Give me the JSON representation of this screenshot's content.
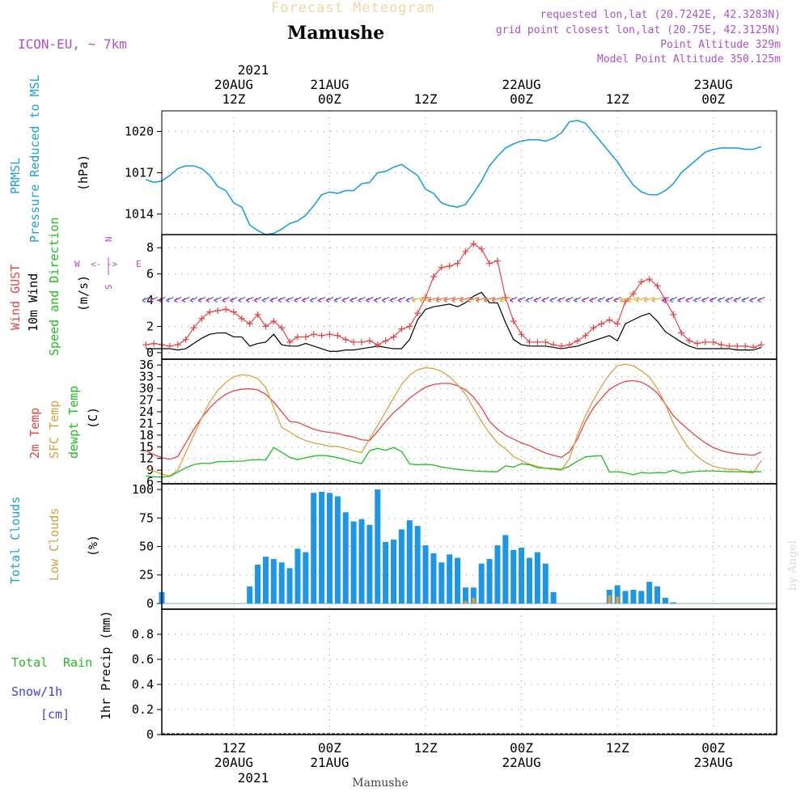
{
  "header": {
    "forecast_title": "Forecast Meteogram",
    "location": "Mamushe",
    "model": "ICON-EU, ~ 7km",
    "requested": "requested lon,lat (20.7242E, 42.3283N)",
    "grid_point": "grid point closest lon,lat (20.75E, 42.3125N)",
    "point_altitude": "Point Altitude 329m",
    "model_altitude": "Model Point Altitude 350.125m",
    "footer_location": "Mamushe",
    "watermark": "by Angel"
  },
  "time_axis": {
    "top_year": "2021",
    "bottom_year": "2021",
    "ticks": [
      {
        "hour": 12,
        "time": "12Z",
        "date": "20AUG"
      },
      {
        "hour": 24,
        "time": "00Z",
        "date": "21AUG"
      },
      {
        "hour": 36,
        "time": "12Z",
        "date": ""
      },
      {
        "hour": 48,
        "time": "00Z",
        "date": "22AUG"
      },
      {
        "hour": 60,
        "time": "12Z",
        "date": ""
      },
      {
        "hour": 72,
        "time": "00Z",
        "date": "23AUG"
      }
    ],
    "bottom_ticks": [
      {
        "hour": 12,
        "time": "12Z",
        "date": "20AUG"
      },
      {
        "hour": 24,
        "time": "00Z",
        "date": "21AUG"
      },
      {
        "hour": 36,
        "time": "12Z",
        "date": ""
      },
      {
        "hour": 48,
        "time": "00Z",
        "date": "22AUG"
      },
      {
        "hour": 60,
        "time": "12Z",
        "date": ""
      },
      {
        "hour": 72,
        "time": "00Z",
        "date": "23AUG"
      }
    ]
  },
  "colors": {
    "pressure": "#1ea0e6",
    "gust": "#e84646",
    "wind": "#000000",
    "wind_dir": "#20c020",
    "t2m": "#e84646",
    "sfc": "#e0a040",
    "dewpt": "#20c020",
    "total_clouds": "#1e96e6",
    "low_clouds": "#d8a040",
    "rain": "#20c020",
    "snow": "#4040e0",
    "label": "#b050d0"
  },
  "panels": {
    "pressure": {
      "label1": "PRMSL",
      "label2": "Pressure Reduced to MSL",
      "unit": "(hPa)"
    },
    "wind": {
      "label1": "Wind GUST",
      "label2": "10m Wind",
      "label3": "Speed and Direction",
      "unit": "(m/s)",
      "compass_n": "N",
      "compass_s": "S",
      "compass_w": "W",
      "compass_e": "E"
    },
    "temp": {
      "label1": "2m Temp",
      "label2": "SFC Temp",
      "label3": "dewpt Temp",
      "unit": "(C)"
    },
    "clouds": {
      "label1": "Total Clouds",
      "label2": "Low Clouds",
      "unit": "(%)"
    },
    "precip": {
      "label1": "Total",
      "label2": "Rain",
      "label3": "Snow/1h",
      "label4": "[cm]",
      "unit": "1hr Precip (mm)"
    }
  },
  "chart_data": [
    {
      "type": "line",
      "title": "PRMSL Pressure Reduced to MSL",
      "ylabel": "(hPa)",
      "ylim": [
        1012.5,
        1021.5
      ],
      "yticks": [
        1014,
        1017,
        1020
      ],
      "x": [
        1,
        2,
        3,
        4,
        5,
        6,
        7,
        8,
        9,
        10,
        11,
        12,
        13,
        14,
        15,
        16,
        17,
        18,
        19,
        20,
        21,
        22,
        23,
        24,
        25,
        26,
        27,
        28,
        29,
        30,
        31,
        32,
        33,
        34,
        35,
        36,
        37,
        38,
        39,
        40,
        41,
        42,
        43,
        44,
        45,
        46,
        47,
        48,
        49,
        50,
        51,
        52,
        53,
        54,
        55,
        56,
        57,
        58,
        59,
        60,
        61,
        62,
        63,
        64,
        65,
        66,
        67,
        68,
        69,
        70,
        71,
        72,
        73,
        74,
        75,
        76,
        77,
        78
      ],
      "values": [
        1016.5,
        1016.3,
        1016.4,
        1016.8,
        1017.3,
        1017.5,
        1017.5,
        1017.3,
        1016.8,
        1016.0,
        1015.7,
        1014.8,
        1014.5,
        1013.2,
        1012.8,
        1012.5,
        1012.6,
        1012.9,
        1013.3,
        1013.5,
        1013.9,
        1014.6,
        1015.4,
        1015.6,
        1015.5,
        1015.7,
        1015.7,
        1016.2,
        1016.3,
        1017.0,
        1017.1,
        1017.4,
        1017.6,
        1017.2,
        1016.8,
        1015.8,
        1015.5,
        1014.8,
        1014.6,
        1014.5,
        1014.7,
        1015.5,
        1016.4,
        1017.5,
        1018.2,
        1018.8,
        1019.1,
        1019.3,
        1019.4,
        1019.4,
        1019.3,
        1019.5,
        1019.9,
        1020.7,
        1020.8,
        1020.6,
        1019.9,
        1019.2,
        1018.5,
        1017.8,
        1016.9,
        1016.1,
        1015.6,
        1015.4,
        1015.4,
        1015.7,
        1016.2,
        1017.0,
        1017.5,
        1018.0,
        1018.5,
        1018.7,
        1018.8,
        1018.8,
        1018.8,
        1018.7,
        1018.7,
        1018.9
      ]
    },
    {
      "type": "line",
      "title": "Wind GUST / 10m Wind Speed and Direction",
      "ylabel": "(m/s)",
      "ylim": [
        -0.5,
        9
      ],
      "yticks": [
        0,
        2,
        4,
        6,
        8
      ],
      "x": [
        1,
        2,
        3,
        4,
        5,
        6,
        7,
        8,
        9,
        10,
        11,
        12,
        13,
        14,
        15,
        16,
        17,
        18,
        19,
        20,
        21,
        22,
        23,
        24,
        25,
        26,
        27,
        28,
        29,
        30,
        31,
        32,
        33,
        34,
        35,
        36,
        37,
        38,
        39,
        40,
        41,
        42,
        43,
        44,
        45,
        46,
        47,
        48,
        49,
        50,
        51,
        52,
        53,
        54,
        55,
        56,
        57,
        58,
        59,
        60,
        61,
        62,
        63,
        64,
        65,
        66,
        67,
        68,
        69,
        70,
        71,
        72,
        73,
        74,
        75,
        76,
        77,
        78
      ],
      "series": [
        {
          "name": "Wind GUST",
          "values": [
            0.6,
            0.7,
            0.6,
            0.5,
            0.6,
            1.0,
            1.9,
            2.6,
            3.1,
            3.2,
            3.3,
            3.1,
            2.6,
            2.2,
            2.9,
            2.0,
            2.4,
            1.9,
            0.8,
            1.2,
            1.2,
            1.4,
            1.3,
            1.4,
            1.3,
            1.0,
            0.8,
            0.8,
            0.9,
            0.6,
            0.9,
            1.2,
            1.8,
            2.0,
            3.0,
            4.2,
            5.8,
            6.5,
            6.6,
            6.8,
            7.7,
            8.3,
            7.9,
            6.8,
            7.0,
            4.2,
            2.4,
            1.4,
            0.8,
            0.8,
            0.8,
            0.6,
            0.5,
            0.6,
            0.9,
            1.3,
            1.9,
            2.2,
            2.5,
            2.2,
            3.9,
            4.5,
            5.4,
            5.6,
            5.1,
            4.0,
            2.9,
            1.5,
            0.9,
            0.7,
            0.8,
            0.8,
            0.6,
            0.5,
            0.5,
            0.5,
            0.4,
            0.6
          ]
        },
        {
          "name": "10m Wind",
          "values": [
            0.3,
            0.3,
            0.3,
            0.3,
            0.2,
            0.3,
            0.7,
            1.1,
            1.4,
            1.5,
            1.5,
            1.2,
            1.2,
            0.5,
            0.7,
            0.8,
            1.4,
            0.6,
            0.5,
            0.5,
            0.7,
            0.5,
            0.3,
            0.1,
            0.1,
            0.2,
            0.2,
            0.3,
            0.4,
            0.5,
            0.4,
            0.3,
            0.3,
            1.0,
            2.5,
            3.3,
            3.5,
            3.6,
            3.7,
            3.5,
            3.8,
            4.3,
            4.6,
            3.8,
            3.8,
            2.3,
            1.0,
            0.6,
            0.5,
            0.5,
            0.5,
            0.4,
            0.3,
            0.4,
            0.5,
            0.7,
            0.9,
            1.1,
            1.3,
            0.9,
            2.2,
            2.5,
            2.8,
            3.0,
            2.4,
            1.6,
            1.2,
            0.8,
            0.5,
            0.3,
            0.3,
            0.3,
            0.3,
            0.3,
            0.2,
            0.2,
            0.2,
            0.4
          ]
        }
      ]
    },
    {
      "type": "line",
      "title": "2m Temp / SFC Temp / dewpt Temp",
      "ylabel": "(C)",
      "ylim": [
        5.5,
        37.5
      ],
      "yticks": [
        6,
        9,
        12,
        15,
        18,
        21,
        24,
        27,
        30,
        33,
        36
      ],
      "x": [
        1,
        2,
        3,
        4,
        5,
        6,
        7,
        8,
        9,
        10,
        11,
        12,
        13,
        14,
        15,
        16,
        17,
        18,
        19,
        20,
        21,
        22,
        23,
        24,
        25,
        26,
        27,
        28,
        29,
        30,
        31,
        32,
        33,
        34,
        35,
        36,
        37,
        38,
        39,
        40,
        41,
        42,
        43,
        44,
        45,
        46,
        47,
        48,
        49,
        50,
        51,
        52,
        53,
        54,
        55,
        56,
        57,
        58,
        59,
        60,
        61,
        62,
        63,
        64,
        65,
        66,
        67,
        68,
        69,
        70,
        71,
        72,
        73,
        74,
        75,
        76,
        77,
        78
      ],
      "series": [
        {
          "name": "2m Temp",
          "values": [
            14,
            13,
            12.2,
            11.8,
            12.5,
            16,
            19.5,
            22.5,
            25,
            27,
            28.5,
            29.4,
            29.8,
            29.9,
            29.6,
            28.5,
            26.5,
            24,
            21.5,
            21.3,
            20.4,
            19.5,
            19,
            18.7,
            18.4,
            17.9,
            17.5,
            16.8,
            16.6,
            19,
            21.5,
            23.8,
            25.5,
            27.5,
            29,
            30.3,
            31,
            31.3,
            31.3,
            30.7,
            29.6,
            27.8,
            25,
            21.5,
            19.5,
            18,
            17,
            16,
            15.3,
            14.3,
            13.4,
            12.8,
            12.3,
            13.7,
            17,
            21.5,
            25,
            27.5,
            29.7,
            31,
            31.8,
            32,
            31.6,
            30.5,
            28.8,
            26,
            23,
            21,
            19.2,
            17.5,
            16,
            14.8,
            14,
            13.5,
            13.2,
            13,
            12.8,
            13.7
          ]
        },
        {
          "name": "SFC Temp",
          "values": [
            9.5,
            8.8,
            8,
            7.5,
            9,
            13.5,
            18,
            22.5,
            26.5,
            29.5,
            31.5,
            33,
            33.5,
            33.3,
            32.5,
            30.3,
            25,
            20,
            18.8,
            17.5,
            16.6,
            16,
            15.6,
            15.1,
            15.1,
            14.6,
            14,
            13.5,
            17,
            20.5,
            24,
            27.5,
            31,
            33.4,
            34.8,
            35.3,
            35.1,
            34.4,
            33,
            31,
            28.5,
            25,
            21.5,
            18.5,
            16,
            14.5,
            12.5,
            11.5,
            10.5,
            10,
            9.5,
            9.2,
            9,
            12,
            18,
            23,
            27,
            30.5,
            33.6,
            35.8,
            36.2,
            35.8,
            34.5,
            33,
            30,
            26,
            21,
            17.5,
            14.5,
            12.5,
            11,
            10,
            9.5,
            9.2,
            9.2,
            8.5,
            8.3,
            11.5
          ]
        },
        {
          "name": "dewpt Temp",
          "values": [
            7.5,
            7.3,
            7.2,
            7.4,
            8.5,
            9.6,
            10.4,
            10.8,
            10.7,
            11.2,
            11.2,
            11.3,
            11.3,
            11.6,
            11.7,
            11.6,
            14.8,
            13.6,
            12.3,
            11.7,
            12.2,
            12.6,
            12.8,
            12.6,
            12.2,
            11.7,
            11.1,
            10.7,
            14,
            14.6,
            14.1,
            14.8,
            13.8,
            10.6,
            10.4,
            10.5,
            10.3,
            9.8,
            9.5,
            9.2,
            9,
            8.8,
            8.7,
            8.6,
            8.6,
            10.1,
            9.8,
            10.6,
            10.4,
            9.6,
            9.5,
            9.4,
            9.2,
            10,
            11.3,
            12.4,
            12.6,
            12.7,
            8.5,
            8.6,
            8.3,
            7.8,
            8.4,
            8.2,
            8.4,
            8.3,
            9,
            8.2,
            8.5,
            8.7,
            8.8,
            8.8,
            8.7,
            8.6,
            8.6,
            8.6,
            8.6,
            8.6
          ]
        }
      ]
    },
    {
      "type": "bar",
      "title": "Total Clouds / Low Clouds",
      "ylabel": "(%)",
      "ylim": [
        -5,
        105
      ],
      "yticks": [
        0,
        25,
        50,
        75,
        100
      ],
      "x": [
        0,
        1,
        2,
        3,
        4,
        5,
        6,
        7,
        8,
        9,
        10,
        11,
        12,
        13,
        14,
        15,
        16,
        17,
        18,
        19,
        20,
        21,
        22,
        23,
        24,
        25,
        26,
        27,
        28,
        29,
        30,
        31,
        32,
        33,
        34,
        35,
        36,
        37,
        38,
        39,
        40,
        41,
        42,
        43,
        44,
        45,
        46,
        47,
        48,
        49,
        50,
        51,
        52,
        53,
        54,
        55,
        56,
        57,
        58,
        59,
        60,
        61,
        62,
        63,
        64,
        65,
        66,
        67,
        68,
        69,
        70,
        71,
        72,
        73,
        74,
        75,
        76,
        77
      ],
      "series": [
        {
          "name": "Total Clouds",
          "values": [
            10,
            0,
            0,
            0,
            0,
            0,
            0,
            0,
            0,
            0,
            0,
            15,
            34,
            41,
            39,
            36,
            31,
            48,
            45,
            97,
            98,
            97,
            94,
            80,
            72,
            74,
            69,
            100,
            54,
            56,
            65,
            73,
            68,
            51,
            44,
            36,
            43,
            40,
            14,
            14,
            35,
            39,
            51,
            60,
            47,
            49,
            40,
            45,
            35,
            10,
            0,
            0,
            0,
            0,
            0,
            0,
            12,
            16,
            11,
            12,
            11,
            19,
            15,
            5,
            1,
            0,
            0,
            0,
            0,
            0,
            0,
            0,
            0,
            0,
            0,
            0,
            0,
            0
          ]
        },
        {
          "name": "Low Clouds",
          "values": [
            0,
            0,
            0,
            0,
            0,
            0,
            0,
            0,
            0,
            0,
            0,
            0,
            0,
            0,
            0,
            0,
            0,
            0,
            0,
            0,
            0,
            0,
            0,
            0,
            0,
            0,
            0,
            0,
            0,
            0,
            0,
            0,
            0,
            0,
            0,
            0,
            0,
            0,
            2,
            5,
            0,
            0,
            0,
            0,
            0,
            0,
            0,
            0,
            0,
            0,
            0,
            0,
            0,
            0,
            0,
            0,
            7,
            6,
            0,
            0,
            0,
            0,
            0,
            0,
            0,
            0,
            0,
            0,
            0,
            0,
            0,
            0,
            0,
            0,
            0,
            0,
            0,
            0
          ]
        }
      ]
    },
    {
      "type": "bar",
      "title": "Total Rain / Snow 1hr Precip",
      "ylabel": "1hr Precip (mm)",
      "ylim": [
        0,
        1.0
      ],
      "yticks": [
        0,
        0.2,
        0.4,
        0.6,
        0.8
      ],
      "series": [
        {
          "name": "Total Rain",
          "values": []
        },
        {
          "name": "Snow/1h",
          "values": []
        }
      ]
    }
  ]
}
